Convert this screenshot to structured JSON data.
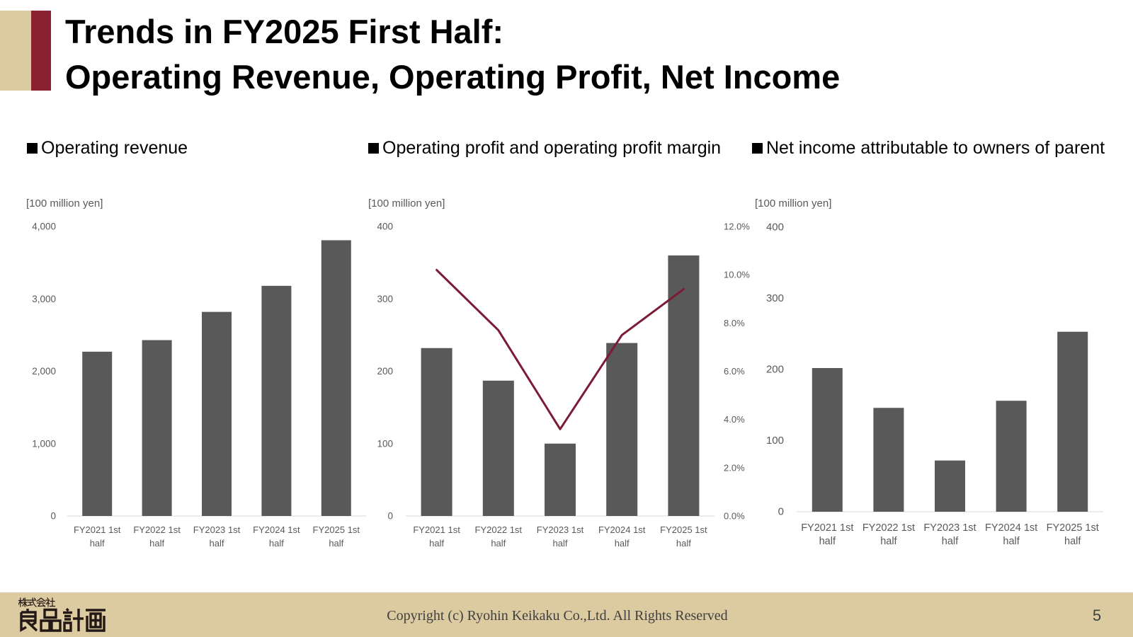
{
  "slide": {
    "title_line1": "Trends in FY2025 First Half:",
    "title_line2": "Operating Revenue, Operating Profit, Net Income",
    "page_number": "5"
  },
  "footer": {
    "copyright": "Copyright (c) Ryohin Keikaku Co.,Ltd. All Rights Reserved"
  },
  "logo": {
    "line1": "株式会社",
    "line2": "良品計画"
  },
  "colors": {
    "bar": "#595959",
    "line": "#7b1b35",
    "accent": "#8b2232",
    "beige": "#dccaa0",
    "axis": "#d9d9d9",
    "tick_text": "#595959"
  },
  "chart_data": [
    {
      "type": "bar",
      "title": "Operating revenue",
      "ylabel": "[100 million yen]",
      "categories": [
        "FY2021 1st half",
        "FY2022 1st half",
        "FY2023 1st half",
        "FY2024 1st half",
        "FY2025 1st half"
      ],
      "values": [
        2270,
        2430,
        2820,
        3180,
        3810
      ],
      "ylim": [
        0,
        4000
      ],
      "yticks": [
        "0",
        "1,000",
        "2,000",
        "3,000",
        "4,000"
      ],
      "grid": false
    },
    {
      "type": "bar",
      "title": "Operating profit and operating profit margin",
      "ylabel": "[100 million yen]",
      "categories": [
        "FY2021 1st half",
        "FY2022 1st half",
        "FY2023 1st half",
        "FY2024 1st half",
        "FY2025 1st half"
      ],
      "values": [
        232,
        187,
        100,
        239,
        360
      ],
      "ylim": [
        0,
        400
      ],
      "yticks": [
        "0",
        "100",
        "200",
        "300",
        "400"
      ],
      "grid": false,
      "secondary": {
        "type": "line",
        "values": [
          10.2,
          7.7,
          3.6,
          7.5,
          9.4
        ],
        "ylim": [
          0,
          12
        ],
        "yticks": [
          "0.0%",
          "2.0%",
          "4.0%",
          "6.0%",
          "8.0%",
          "10.0%",
          "12.0%"
        ]
      }
    },
    {
      "type": "bar",
      "title": "Net income attributable to owners of parent",
      "ylabel": "[100 million yen]",
      "categories": [
        "FY2021 1st half",
        "FY2022 1st half",
        "FY2023 1st half",
        "FY2024 1st half",
        "FY2025 1st half"
      ],
      "values": [
        202,
        146,
        72,
        156,
        253
      ],
      "ylim": [
        0,
        400
      ],
      "yticks": [
        "0",
        "100",
        "200",
        "300",
        "400"
      ],
      "grid": false
    }
  ]
}
